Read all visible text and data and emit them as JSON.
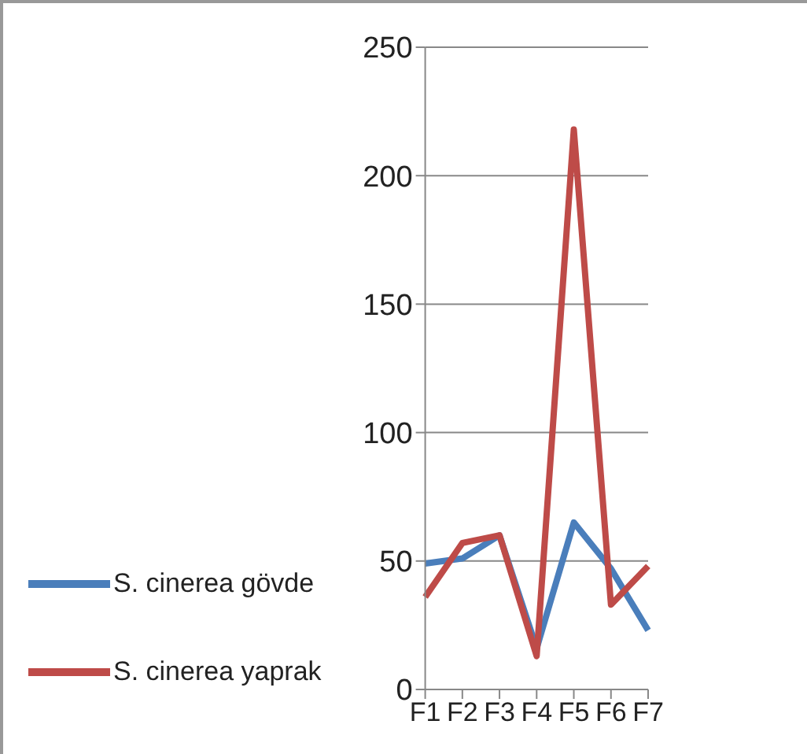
{
  "chart_data": {
    "type": "line",
    "categories": [
      "F1",
      "F2",
      "F3",
      "F4",
      "F5",
      "F6",
      "F7"
    ],
    "series": [
      {
        "name": "S. cinerea gövde",
        "color": "#4a7ebb",
        "values": [
          49,
          51,
          60,
          16,
          65,
          47,
          23
        ]
      },
      {
        "name": "S. cinerea yaprak",
        "color": "#be4b48",
        "values": [
          36,
          57,
          60,
          13,
          218,
          33,
          48
        ]
      }
    ],
    "ylim": [
      0,
      250
    ],
    "yticks": [
      0,
      50,
      100,
      150,
      200,
      250
    ],
    "grid": "y",
    "legend": "bottom left",
    "marker": "none",
    "line_style": "solid"
  }
}
